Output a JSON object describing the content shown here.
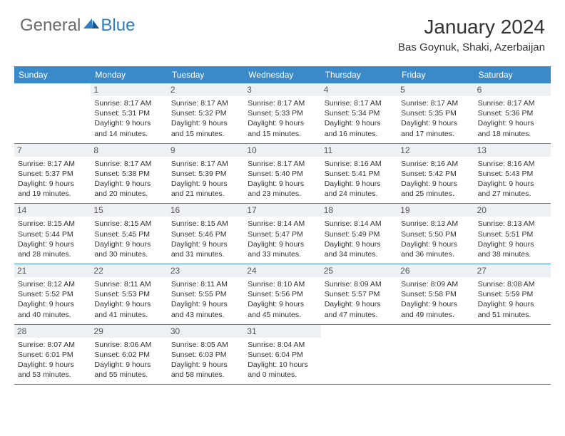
{
  "logo": {
    "general": "General",
    "blue": "Blue"
  },
  "title": "January 2024",
  "location": "Bas Goynuk, Shaki, Azerbaijan",
  "colors": {
    "header_bg": "#3a8ac9",
    "daynum_bg": "#eef1f3",
    "accent_blue": "#2f7ec2",
    "logo_gray": "#6a6a6a",
    "text": "#333333",
    "border": "#3a8ac9"
  },
  "weekdays": [
    "Sunday",
    "Monday",
    "Tuesday",
    "Wednesday",
    "Thursday",
    "Friday",
    "Saturday"
  ],
  "weeks": [
    [
      null,
      {
        "n": "1",
        "sunrise": "8:17 AM",
        "sunset": "5:31 PM",
        "daylight": "9 hours and 14 minutes."
      },
      {
        "n": "2",
        "sunrise": "8:17 AM",
        "sunset": "5:32 PM",
        "daylight": "9 hours and 15 minutes."
      },
      {
        "n": "3",
        "sunrise": "8:17 AM",
        "sunset": "5:33 PM",
        "daylight": "9 hours and 15 minutes."
      },
      {
        "n": "4",
        "sunrise": "8:17 AM",
        "sunset": "5:34 PM",
        "daylight": "9 hours and 16 minutes."
      },
      {
        "n": "5",
        "sunrise": "8:17 AM",
        "sunset": "5:35 PM",
        "daylight": "9 hours and 17 minutes."
      },
      {
        "n": "6",
        "sunrise": "8:17 AM",
        "sunset": "5:36 PM",
        "daylight": "9 hours and 18 minutes."
      }
    ],
    [
      {
        "n": "7",
        "sunrise": "8:17 AM",
        "sunset": "5:37 PM",
        "daylight": "9 hours and 19 minutes."
      },
      {
        "n": "8",
        "sunrise": "8:17 AM",
        "sunset": "5:38 PM",
        "daylight": "9 hours and 20 minutes."
      },
      {
        "n": "9",
        "sunrise": "8:17 AM",
        "sunset": "5:39 PM",
        "daylight": "9 hours and 21 minutes."
      },
      {
        "n": "10",
        "sunrise": "8:17 AM",
        "sunset": "5:40 PM",
        "daylight": "9 hours and 23 minutes."
      },
      {
        "n": "11",
        "sunrise": "8:16 AM",
        "sunset": "5:41 PM",
        "daylight": "9 hours and 24 minutes."
      },
      {
        "n": "12",
        "sunrise": "8:16 AM",
        "sunset": "5:42 PM",
        "daylight": "9 hours and 25 minutes."
      },
      {
        "n": "13",
        "sunrise": "8:16 AM",
        "sunset": "5:43 PM",
        "daylight": "9 hours and 27 minutes."
      }
    ],
    [
      {
        "n": "14",
        "sunrise": "8:15 AM",
        "sunset": "5:44 PM",
        "daylight": "9 hours and 28 minutes."
      },
      {
        "n": "15",
        "sunrise": "8:15 AM",
        "sunset": "5:45 PM",
        "daylight": "9 hours and 30 minutes."
      },
      {
        "n": "16",
        "sunrise": "8:15 AM",
        "sunset": "5:46 PM",
        "daylight": "9 hours and 31 minutes."
      },
      {
        "n": "17",
        "sunrise": "8:14 AM",
        "sunset": "5:47 PM",
        "daylight": "9 hours and 33 minutes."
      },
      {
        "n": "18",
        "sunrise": "8:14 AM",
        "sunset": "5:49 PM",
        "daylight": "9 hours and 34 minutes."
      },
      {
        "n": "19",
        "sunrise": "8:13 AM",
        "sunset": "5:50 PM",
        "daylight": "9 hours and 36 minutes."
      },
      {
        "n": "20",
        "sunrise": "8:13 AM",
        "sunset": "5:51 PM",
        "daylight": "9 hours and 38 minutes."
      }
    ],
    [
      {
        "n": "21",
        "sunrise": "8:12 AM",
        "sunset": "5:52 PM",
        "daylight": "9 hours and 40 minutes."
      },
      {
        "n": "22",
        "sunrise": "8:11 AM",
        "sunset": "5:53 PM",
        "daylight": "9 hours and 41 minutes."
      },
      {
        "n": "23",
        "sunrise": "8:11 AM",
        "sunset": "5:55 PM",
        "daylight": "9 hours and 43 minutes."
      },
      {
        "n": "24",
        "sunrise": "8:10 AM",
        "sunset": "5:56 PM",
        "daylight": "9 hours and 45 minutes."
      },
      {
        "n": "25",
        "sunrise": "8:09 AM",
        "sunset": "5:57 PM",
        "daylight": "9 hours and 47 minutes."
      },
      {
        "n": "26",
        "sunrise": "8:09 AM",
        "sunset": "5:58 PM",
        "daylight": "9 hours and 49 minutes."
      },
      {
        "n": "27",
        "sunrise": "8:08 AM",
        "sunset": "5:59 PM",
        "daylight": "9 hours and 51 minutes."
      }
    ],
    [
      {
        "n": "28",
        "sunrise": "8:07 AM",
        "sunset": "6:01 PM",
        "daylight": "9 hours and 53 minutes."
      },
      {
        "n": "29",
        "sunrise": "8:06 AM",
        "sunset": "6:02 PM",
        "daylight": "9 hours and 55 minutes."
      },
      {
        "n": "30",
        "sunrise": "8:05 AM",
        "sunset": "6:03 PM",
        "daylight": "9 hours and 58 minutes."
      },
      {
        "n": "31",
        "sunrise": "8:04 AM",
        "sunset": "6:04 PM",
        "daylight": "10 hours and 0 minutes."
      },
      null,
      null,
      null
    ]
  ],
  "labels": {
    "sunrise": "Sunrise:",
    "sunset": "Sunset:",
    "daylight": "Daylight:"
  }
}
